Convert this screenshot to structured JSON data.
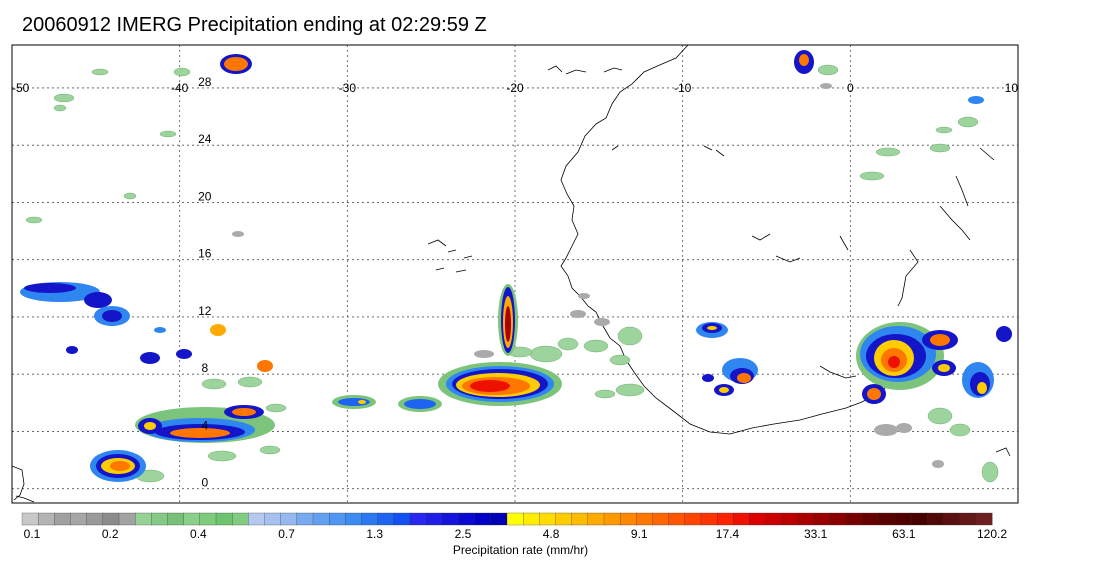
{
  "title": "20060912 IMERG Precipitation ending at 02:29:59 Z",
  "map": {
    "lon_range": [
      -50,
      10
    ],
    "lat_range": [
      -1,
      31
    ],
    "lon_ticks": [
      {
        "value": -50,
        "label": "-50"
      },
      {
        "value": -40,
        "label": "-40"
      },
      {
        "value": -30,
        "label": "-30"
      },
      {
        "value": -20,
        "label": "-20"
      },
      {
        "value": -10,
        "label": "-10"
      },
      {
        "value": 0,
        "label": "0"
      },
      {
        "value": 10,
        "label": "10"
      }
    ],
    "lat_ticks": [
      {
        "value": 0,
        "label": "0"
      },
      {
        "value": 4,
        "label": "4"
      },
      {
        "value": 8,
        "label": "8"
      },
      {
        "value": 12,
        "label": "12"
      },
      {
        "value": 16,
        "label": "16"
      },
      {
        "value": 20,
        "label": "20"
      },
      {
        "value": 24,
        "label": "24"
      },
      {
        "value": 28,
        "label": "28"
      }
    ]
  },
  "colorbar": {
    "colors": [
      "#c8c8c8",
      "#b4b4b4",
      "#a0a0a0",
      "#a6a6a6",
      "#9a9a9a",
      "#8c8c8c",
      "#a2a2a2",
      "#96d296",
      "#86c986",
      "#78c078",
      "#8ad08a",
      "#7ccc7c",
      "#6ec46e",
      "#82cc82",
      "#b4c8f0",
      "#a6c0f0",
      "#96b8f0",
      "#78aaf0",
      "#64a0f0",
      "#5096f0",
      "#3c8cf0",
      "#2c78f0",
      "#1e64f0",
      "#1450f0",
      "#2828f0",
      "#1e1ee6",
      "#1414dc",
      "#0a0ad2",
      "#0000c8",
      "#0000b4",
      "#ffff00",
      "#ffee00",
      "#ffdd00",
      "#ffcc00",
      "#ffbb00",
      "#ffaa00",
      "#ff9900",
      "#ff8800",
      "#ff7700",
      "#ff6600",
      "#ff5500",
      "#ff4400",
      "#ff3300",
      "#ff2200",
      "#ee1100",
      "#dd0000",
      "#cc0000",
      "#bb0000",
      "#aa0000",
      "#990000",
      "#880000",
      "#770000",
      "#660000",
      "#580000",
      "#500000",
      "#480000",
      "#500808",
      "#5a1010",
      "#641818",
      "#6e2020"
    ],
    "tick_labels": [
      "0.1",
      "0.2",
      "0.4",
      "0.7",
      "1.3",
      "2.5",
      "4.8",
      "9.1",
      "17.4",
      "33.1",
      "63.1",
      "120.2"
    ],
    "label": "Precipitation rate (mm/hr)"
  }
}
